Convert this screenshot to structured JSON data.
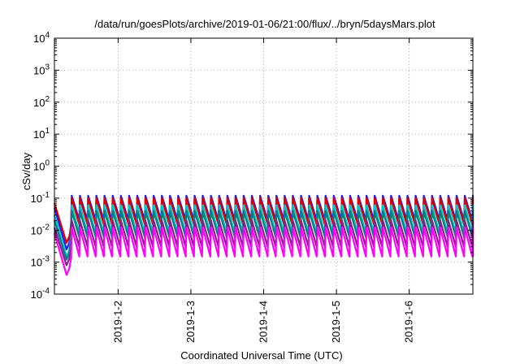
{
  "chart_data": {
    "type": "line",
    "title": "/data/run/goesPlots/archive/2019-01-06/21:00/flux/../bryn/5daysMars.plot",
    "xlabel": "Coordinated Universal Time (UTC)",
    "ylabel": "cSv/day",
    "yscale": "log",
    "ylim": [
      0.0001,
      10000
    ],
    "y_ticks": [
      {
        "value": 0.0001,
        "base": "10",
        "exp": "-4"
      },
      {
        "value": 0.001,
        "base": "10",
        "exp": "-3"
      },
      {
        "value": 0.01,
        "base": "10",
        "exp": "-2"
      },
      {
        "value": 0.1,
        "base": "10",
        "exp": "-1"
      },
      {
        "value": 1,
        "base": "10",
        "exp": "0"
      },
      {
        "value": 10,
        "base": "10",
        "exp": "1"
      },
      {
        "value": 100,
        "base": "10",
        "exp": "2"
      },
      {
        "value": 1000,
        "base": "10",
        "exp": "3"
      },
      {
        "value": 10000,
        "base": "10",
        "exp": "4"
      }
    ],
    "xlim": [
      "2019-01-01 03:00",
      "2019-01-06 21:00"
    ],
    "x_ticks": [
      "2019-1-2",
      "2019-1-3",
      "2019-1-4",
      "2019-1-5",
      "2019-1-6"
    ],
    "grid": true,
    "legend": "none",
    "pattern": {
      "description": "periodic sawtooth flux, approx 2.7 h period",
      "dip_start": "2019-01-01 03:00",
      "dip_min": "2019-01-01 07:00",
      "regular_start": "2019-01-01 08:30",
      "period_hours": 2.7
    },
    "series": [
      {
        "color": "#1a1aff",
        "peak": 0.12,
        "trough": 0.02,
        "start": 0.05,
        "dip": 0.0025
      },
      {
        "color": "#dd0000",
        "peak": 0.1,
        "trough": 0.015,
        "start": 0.07,
        "dip": 0.004
      },
      {
        "color": "#00c8c8",
        "peak": 0.06,
        "trough": 0.008,
        "start": 0.03,
        "dip": 0.0015
      },
      {
        "color": "#008080",
        "peak": 0.04,
        "trough": 0.006,
        "start": 0.02,
        "dip": 0.0012
      },
      {
        "color": "#8b1a8b",
        "peak": 0.02,
        "trough": 0.003,
        "start": 0.012,
        "dip": 0.0008
      },
      {
        "color": "#ff00ff",
        "peak": 0.012,
        "trough": 0.0015,
        "start": 0.008,
        "dip": 0.0004
      }
    ]
  }
}
